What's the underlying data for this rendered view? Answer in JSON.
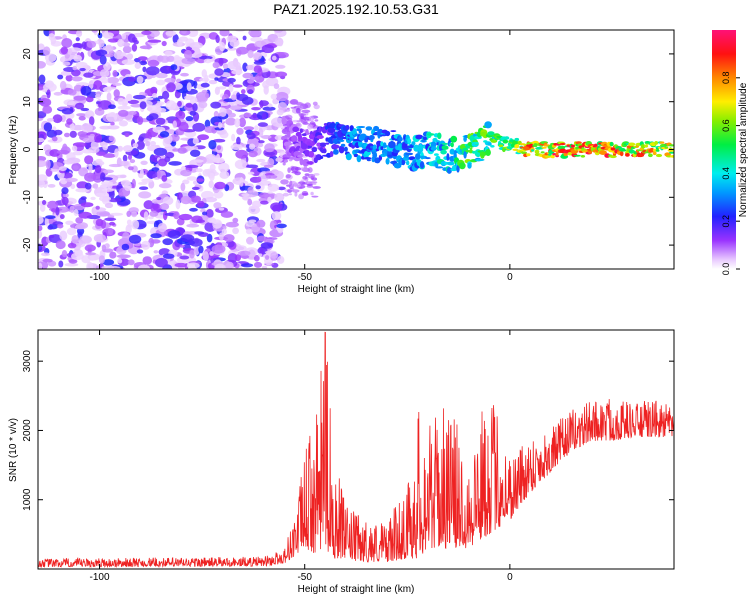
{
  "title": "PAZ1.2025.192.10.53.G31",
  "chart_data": [
    {
      "type": "heatmap",
      "xlabel": "Height of straight line (km)",
      "ylabel": "Frequency (Hz)",
      "xlim": [
        -115,
        40
      ],
      "ylim": [
        -25,
        25
      ],
      "xticks": [
        -100,
        -50,
        0
      ],
      "yticks": [
        -20,
        -10,
        0,
        10,
        20
      ],
      "colorbar": {
        "label": "Normalized spectral amplitude",
        "range": [
          0,
          1
        ],
        "ticks": [
          0,
          0.2,
          0.4,
          0.6,
          0.8
        ],
        "tick_labels": [
          "0.0",
          "0.2",
          "0.4",
          "0.6",
          "0.8"
        ],
        "colormap": "rainbow (white to violet, blue, cyan, green, yellow, red, magenta)"
      },
      "features": {
        "noise_region_x": [
          -115,
          -55
        ],
        "signal_track": {
          "x": [
            -55,
            -50,
            -45,
            -40,
            -35,
            -30,
            -25,
            -20,
            -15,
            -10,
            -5,
            0,
            5,
            10,
            20,
            30,
            40
          ],
          "freq": [
            3,
            0,
            2,
            2,
            1,
            1,
            -1,
            0,
            -1,
            0,
            2,
            1,
            0,
            0,
            0,
            0,
            0
          ],
          "amplitude": [
            0.1,
            0.15,
            0.2,
            0.3,
            0.35,
            0.35,
            0.35,
            0.4,
            0.45,
            0.55,
            0.55,
            0.7,
            0.8,
            0.85,
            0.85,
            0.8,
            0.75
          ]
        }
      },
      "grid": false
    },
    {
      "type": "line",
      "xlabel": "Height of straight line (km)",
      "ylabel": "SNR (10 * v/v)",
      "xlim": [
        -115,
        40
      ],
      "ylim": [
        0,
        3450
      ],
      "xticks": [
        -100,
        -50,
        0
      ],
      "yticks": [
        1000,
        2000,
        3000
      ],
      "grid": false,
      "series": [
        {
          "color": "#ee2222",
          "envelope": {
            "x": [
              -115,
              -60,
              -55,
              -52,
              -50,
              -47,
              -45,
              -43,
              -40,
              -37,
              -35,
              -30,
              -25,
              -22,
              -20,
              -15,
              -10,
              -5,
              0,
              5,
              10,
              15,
              20,
              25,
              30,
              35,
              40
            ],
            "min": [
              30,
              40,
              80,
              200,
              300,
              200,
              300,
              150,
              150,
              100,
              100,
              100,
              150,
              150,
              300,
              300,
              300,
              500,
              700,
              1100,
              1400,
              1700,
              1850,
              1850,
              1900,
              1900,
              1900
            ],
            "max": [
              150,
              180,
              300,
              900,
              1700,
              2300,
              3450,
              1800,
              900,
              800,
              700,
              700,
              1200,
              2450,
              2100,
              2400,
              1700,
              2650,
              1700,
              1950,
              2050,
              2300,
              2450,
              2500,
              2400,
              2450,
              2350
            ]
          }
        }
      ]
    }
  ]
}
